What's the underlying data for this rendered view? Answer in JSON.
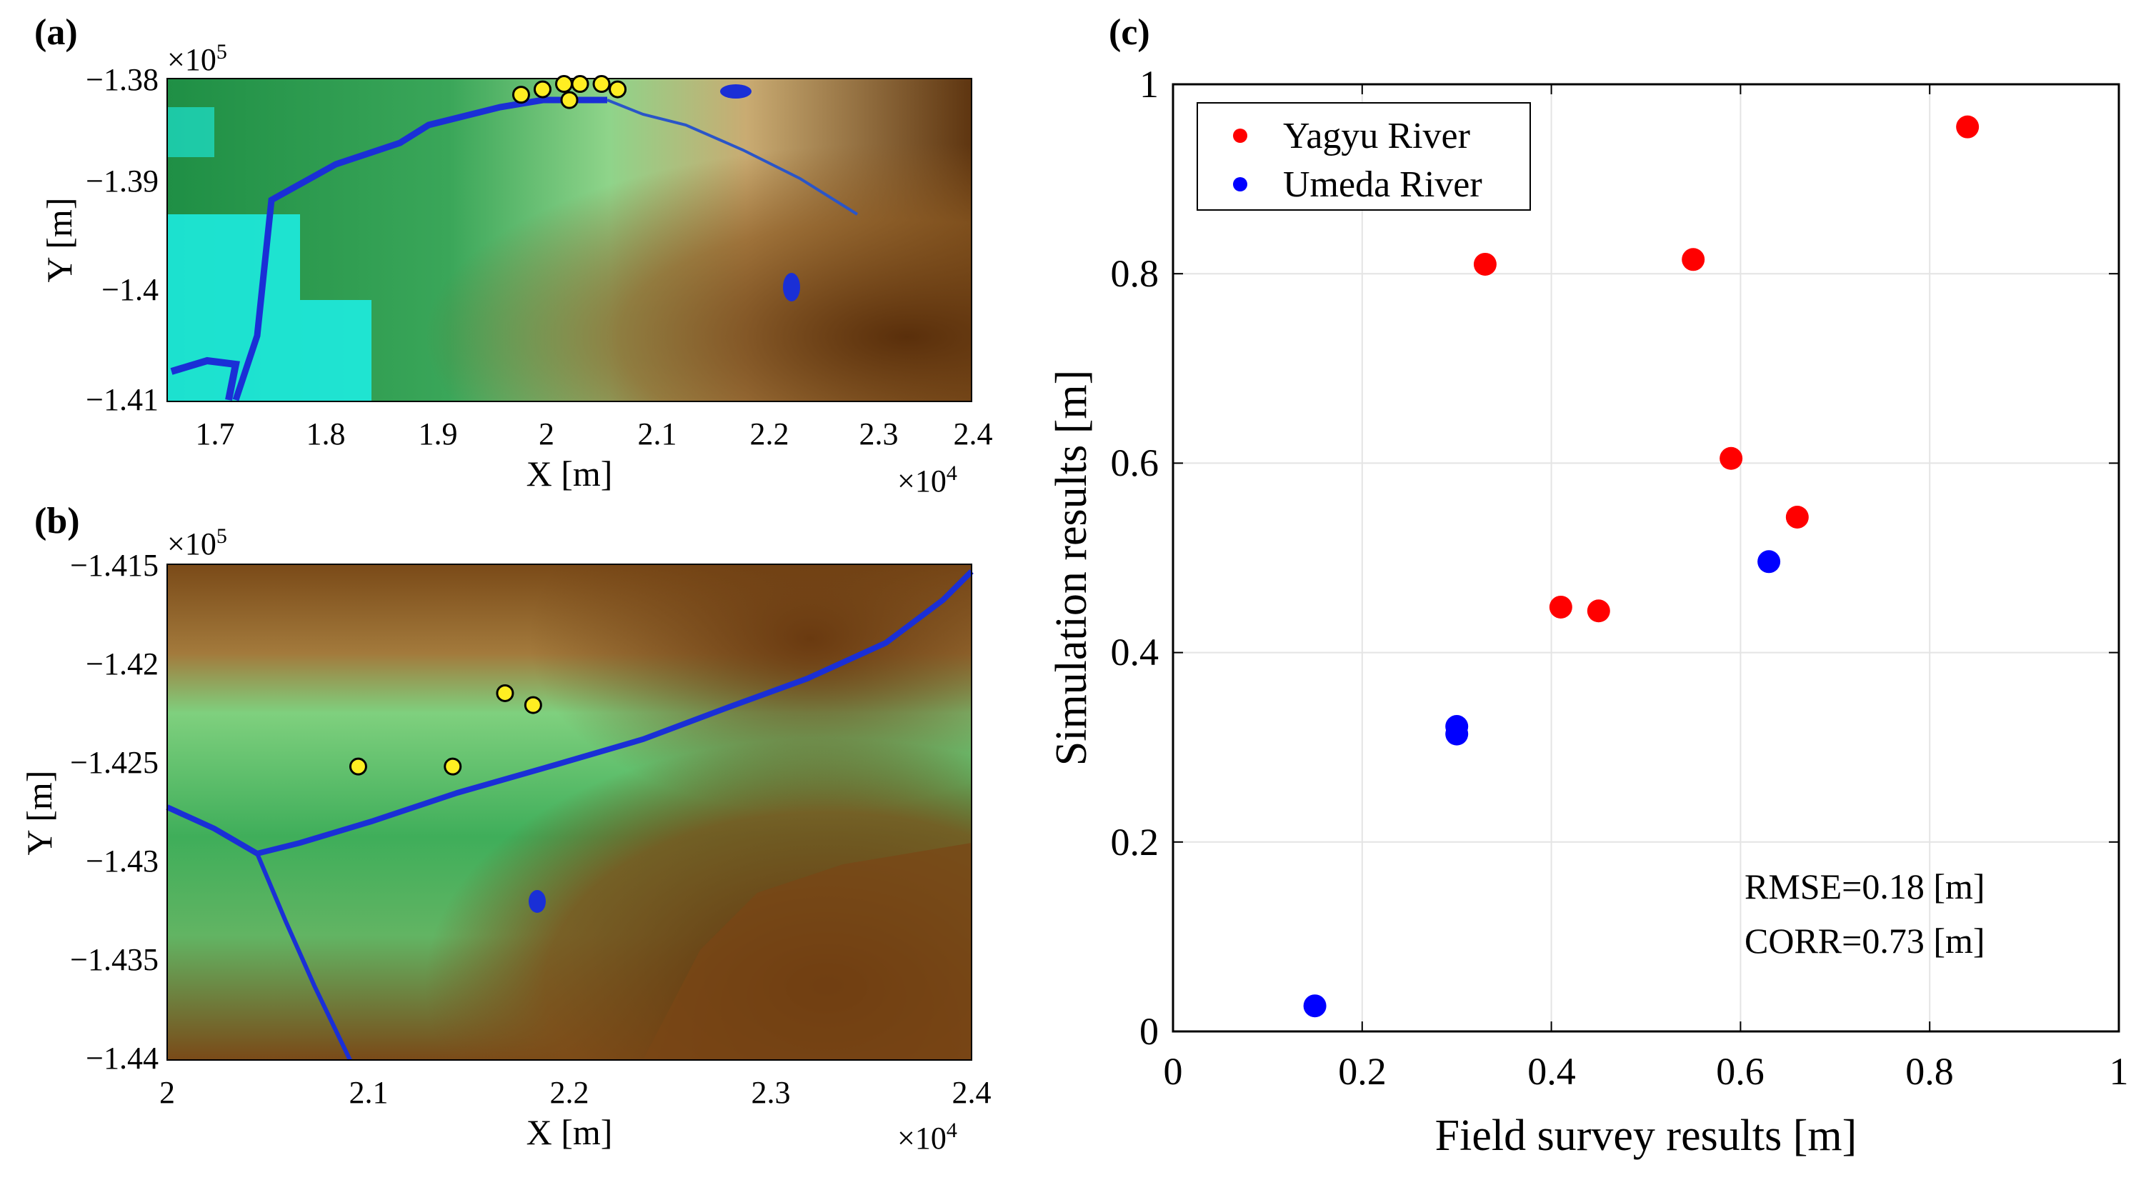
{
  "panels": {
    "a": {
      "label": "(a)",
      "type": "elevation_map",
      "xlabel": "X [m]",
      "ylabel": "Y [m]",
      "x_ticks": [
        "1.7",
        "1.8",
        "1.9",
        "2",
        "2.1",
        "2.2",
        "2.3",
        "2.4"
      ],
      "y_ticks": [
        "−1.38",
        "−1.39",
        "−1.4",
        "−1.41"
      ],
      "x_exponent": "×10",
      "x_exponent_power": "4",
      "y_exponent": "×10",
      "y_exponent_power": "5",
      "xlim": [
        16500,
        24000
      ],
      "ylim": [
        -141000,
        -138000
      ],
      "survey_points": [
        {
          "x": 19800,
          "y": -138150
        },
        {
          "x": 20000,
          "y": -138100
        },
        {
          "x": 20200,
          "y": -138050
        },
        {
          "x": 20350,
          "y": -138050
        },
        {
          "x": 20550,
          "y": -138050
        },
        {
          "x": 20700,
          "y": -138100
        },
        {
          "x": 20250,
          "y": -138200
        }
      ]
    },
    "b": {
      "label": "(b)",
      "type": "elevation_map",
      "xlabel": "X [m]",
      "ylabel": "Y [m]",
      "x_ticks": [
        "2",
        "2.1",
        "2.2",
        "2.3",
        "2.4"
      ],
      "y_ticks": [
        "−1.415",
        "−1.42",
        "−1.425",
        "−1.43",
        "−1.435",
        "−1.44"
      ],
      "x_exponent": "×10",
      "x_exponent_power": "4",
      "y_exponent": "×10",
      "y_exponent_power": "5",
      "xlim": [
        20000,
        24000
      ],
      "ylim": [
        -144000,
        -141500
      ],
      "survey_points": [
        {
          "x": 20950,
          "y": -142520
        },
        {
          "x": 21420,
          "y": -142520
        },
        {
          "x": 21680,
          "y": -142150
        },
        {
          "x": 21820,
          "y": -142210
        }
      ]
    }
  },
  "chart_data": {
    "label": "(c)",
    "type": "scatter",
    "xlabel": "Field survey results [m]",
    "ylabel": "Simulation results [m]",
    "xlim": [
      0,
      1
    ],
    "ylim": [
      0,
      1
    ],
    "x_ticks": [
      "0",
      "0.2",
      "0.4",
      "0.6",
      "0.8",
      "1"
    ],
    "y_ticks": [
      "0",
      "0.2",
      "0.4",
      "0.6",
      "0.8",
      "1"
    ],
    "grid": true,
    "legend_position": "top-left",
    "series": [
      {
        "name": "Yagyu River",
        "color": "#ff0000",
        "points": [
          {
            "x": 0.33,
            "y": 0.81
          },
          {
            "x": 0.55,
            "y": 0.815
          },
          {
            "x": 0.84,
            "y": 0.955
          },
          {
            "x": 0.59,
            "y": 0.605
          },
          {
            "x": 0.66,
            "y": 0.543
          },
          {
            "x": 0.41,
            "y": 0.448
          },
          {
            "x": 0.45,
            "y": 0.444
          }
        ]
      },
      {
        "name": "Umeda River",
        "color": "#0000ff",
        "points": [
          {
            "x": 0.63,
            "y": 0.496
          },
          {
            "x": 0.3,
            "y": 0.322
          },
          {
            "x": 0.3,
            "y": 0.314
          },
          {
            "x": 0.15,
            "y": 0.027
          }
        ]
      }
    ],
    "annotations": [
      "RMSE=0.18 [m]",
      "CORR=0.73 [m]"
    ]
  },
  "colors": {
    "water": "#1a2fd6",
    "urban_cyan": "#1cf0e8",
    "low_green": "#2a9a4a",
    "mid_green": "#8fd68a",
    "pale": "#e6ecba",
    "high_brown": "#6a3a10",
    "marker_yellow": "#ffee22",
    "grid": "#e4e4e4"
  }
}
